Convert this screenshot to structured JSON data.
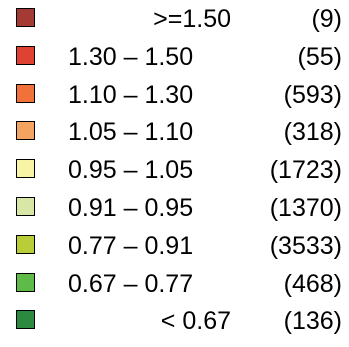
{
  "chart_data": {
    "type": "legend",
    "title": "",
    "entries": [
      {
        "label": ">=1.50",
        "count": "(9)",
        "color": "#a33a33",
        "align": "right"
      },
      {
        "label": "1.30 – 1.50",
        "count": "(55)",
        "color": "#df4133",
        "align": "left"
      },
      {
        "label": "1.10 – 1.30",
        "count": "(593)",
        "color": "#f0713a",
        "align": "left"
      },
      {
        "label": "1.05 – 1.10",
        "count": "(318)",
        "color": "#f3a460",
        "align": "left"
      },
      {
        "label": "0.95 – 1.05",
        "count": "(1723)",
        "color": "#f7f4a6",
        "align": "left"
      },
      {
        "label": "0.91 – 0.95",
        "count": "(1370)",
        "color": "#d8e7a6",
        "align": "left"
      },
      {
        "label": "0.77 – 0.91",
        "count": "(3533)",
        "color": "#b8cd37",
        "align": "left"
      },
      {
        "label": "0.67 – 0.77",
        "count": "(468)",
        "color": "#5fbb47",
        "align": "left"
      },
      {
        "label": "< 0.67",
        "count": "(136)",
        "color": "#2b8a3f",
        "align": "right"
      }
    ]
  }
}
